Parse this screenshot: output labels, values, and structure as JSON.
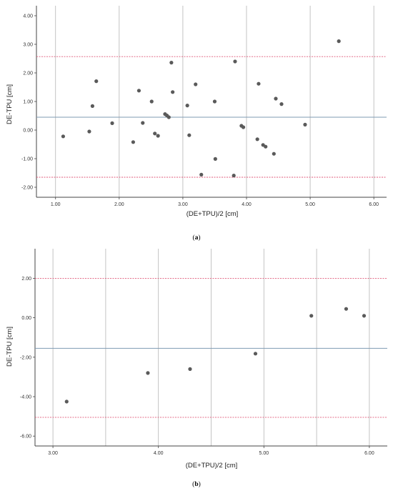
{
  "chart_data": [
    {
      "type": "scatter",
      "caption_prefix": "(",
      "caption_letter": "a",
      "caption_suffix": ")",
      "xlabel": "(DE+TPU)/2 [cm]",
      "ylabel": "DE-TPU [cm]",
      "xlim": [
        0.7,
        6.2
      ],
      "ylim": [
        -2.35,
        4.35
      ],
      "xticks": [
        1.0,
        2.0,
        3.0,
        4.0,
        5.0,
        6.0
      ],
      "xtick_labels": [
        "1.00",
        "2.00",
        "3.00",
        "4.00",
        "5.00",
        "6.00"
      ],
      "yticks": [
        4.0,
        3.0,
        2.0,
        1.0,
        0.0,
        -1.0,
        -2.0
      ],
      "ytick_labels": [
        "4.00",
        "3.00",
        "2.00",
        "1.00",
        "0.00",
        "-1.00",
        "-2.00"
      ],
      "grid": "vertical",
      "mean_line": 0.45,
      "loa_upper": 2.57,
      "loa_lower": -1.65,
      "colors": {
        "points": "#5a5a5a",
        "mean": "#7f9bb3",
        "loa": "#e05a7a",
        "grid": "#b5b5b5",
        "frame": "#444444"
      },
      "points": [
        {
          "x": 1.12,
          "y": -0.22
        },
        {
          "x": 1.53,
          "y": -0.05
        },
        {
          "x": 1.58,
          "y": 0.84
        },
        {
          "x": 1.64,
          "y": 1.71
        },
        {
          "x": 1.89,
          "y": 0.24
        },
        {
          "x": 2.22,
          "y": -0.42
        },
        {
          "x": 2.31,
          "y": 1.38
        },
        {
          "x": 2.37,
          "y": 0.25
        },
        {
          "x": 2.51,
          "y": 1.0
        },
        {
          "x": 2.56,
          "y": -0.12
        },
        {
          "x": 2.61,
          "y": -0.2
        },
        {
          "x": 2.72,
          "y": 0.56
        },
        {
          "x": 2.75,
          "y": 0.51
        },
        {
          "x": 2.78,
          "y": 0.45
        },
        {
          "x": 2.82,
          "y": 2.36
        },
        {
          "x": 2.84,
          "y": 1.33
        },
        {
          "x": 3.07,
          "y": 0.86
        },
        {
          "x": 3.1,
          "y": -0.18
        },
        {
          "x": 3.2,
          "y": 1.6
        },
        {
          "x": 3.29,
          "y": -1.56
        },
        {
          "x": 3.5,
          "y": 1.0
        },
        {
          "x": 3.51,
          "y": -1.01
        },
        {
          "x": 3.8,
          "y": -1.59
        },
        {
          "x": 3.82,
          "y": 2.4
        },
        {
          "x": 3.92,
          "y": 0.15
        },
        {
          "x": 3.95,
          "y": 0.1
        },
        {
          "x": 4.17,
          "y": -0.32
        },
        {
          "x": 4.19,
          "y": 1.62
        },
        {
          "x": 4.26,
          "y": -0.52
        },
        {
          "x": 4.3,
          "y": -0.58
        },
        {
          "x": 4.43,
          "y": -0.83
        },
        {
          "x": 4.46,
          "y": 1.1
        },
        {
          "x": 4.55,
          "y": 0.91
        },
        {
          "x": 4.92,
          "y": 0.19
        },
        {
          "x": 5.45,
          "y": 3.11
        }
      ]
    },
    {
      "type": "scatter",
      "caption_prefix": "(",
      "caption_letter": "b",
      "caption_suffix": ")",
      "xlabel": "(DE+TPU)/2 [cm]",
      "ylabel": "DE-TPU [cm]",
      "xlim": [
        2.83,
        6.17
      ],
      "ylim": [
        -6.5,
        3.5
      ],
      "xticks": [
        3.0,
        4.0,
        5.0,
        6.0
      ],
      "xtick_labels": [
        "3.00",
        "4.00",
        "5.00",
        "6.00"
      ],
      "vgrid": [
        3.0,
        3.5,
        4.0,
        4.5,
        5.0,
        5.5,
        6.0
      ],
      "yticks": [
        2.0,
        0.0,
        -2.0,
        -4.0,
        -6.0
      ],
      "ytick_labels": [
        "2.00",
        "0.00",
        "-2.00",
        "-4.00",
        "-6.00"
      ],
      "grid": "vertical",
      "mean_line": -1.55,
      "loa_upper": 2.0,
      "loa_lower": -5.05,
      "colors": {
        "points": "#5a5a5a",
        "mean": "#7f9bb3",
        "loa": "#e05a7a",
        "grid": "#b5b5b5",
        "frame": "#444444"
      },
      "points": [
        {
          "x": 3.13,
          "y": -4.25
        },
        {
          "x": 3.9,
          "y": -2.8
        },
        {
          "x": 4.3,
          "y": -2.6
        },
        {
          "x": 4.92,
          "y": -1.82
        },
        {
          "x": 5.45,
          "y": 0.1
        },
        {
          "x": 5.78,
          "y": 0.45
        },
        {
          "x": 5.95,
          "y": 0.1
        }
      ]
    }
  ]
}
